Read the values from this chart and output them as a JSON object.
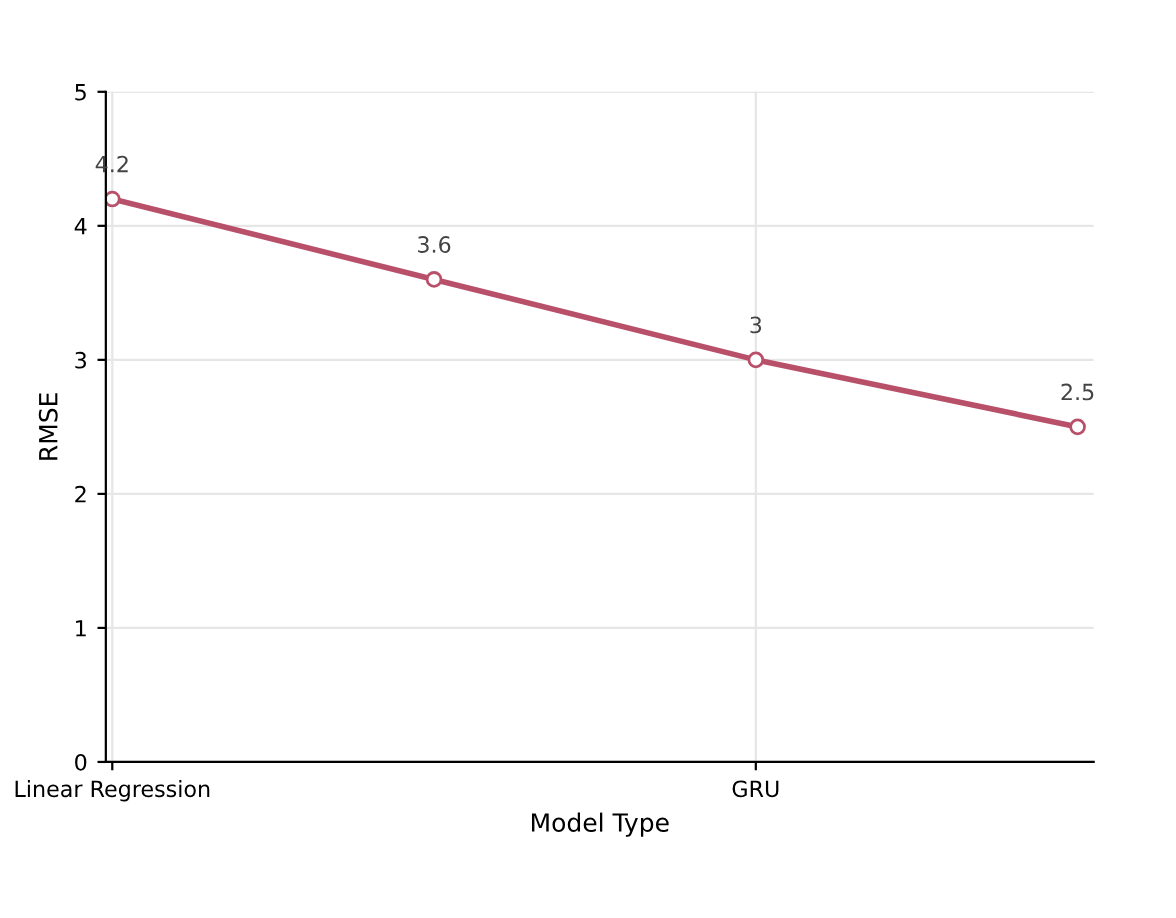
{
  "chart_data": {
    "type": "line",
    "xlabel": "Model Type",
    "ylabel": "RMSE",
    "categories": [
      "Linear Regression",
      null,
      "GRU",
      null
    ],
    "series": [
      {
        "color": "#b8506a",
        "values": [
          4.2,
          3.6,
          3,
          2.5
        ]
      }
    ],
    "ylim": [
      0,
      5
    ],
    "yticks": [
      0,
      1,
      2,
      3,
      4,
      5
    ],
    "grid": true,
    "data_labels": true,
    "marker": "circle",
    "line_style": "solid"
  }
}
